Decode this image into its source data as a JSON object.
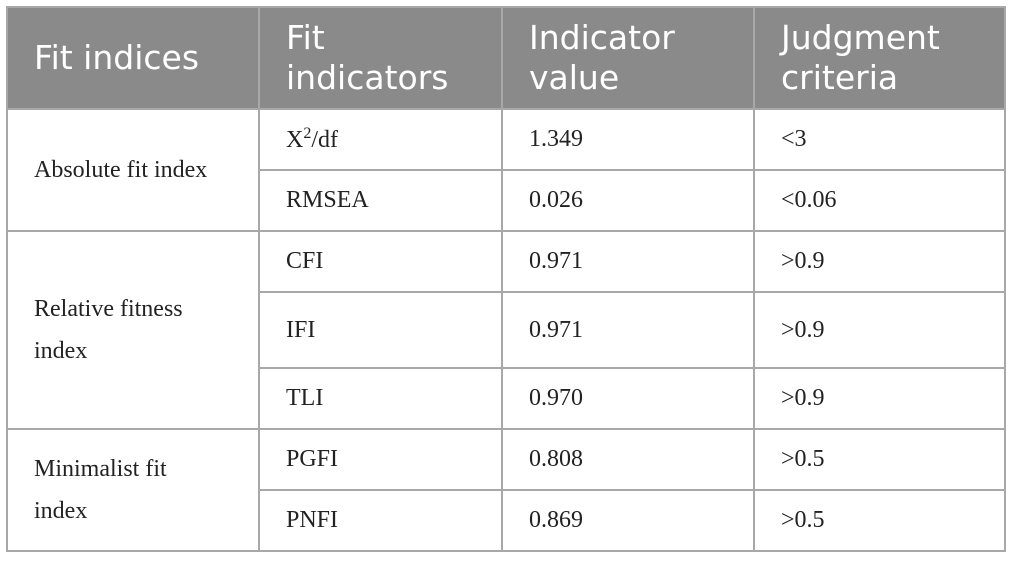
{
  "table": {
    "header": [
      "Fit indices",
      "Fit indicators",
      "Indicator value",
      "Judgment criteria"
    ],
    "groups": [
      {
        "name": "Absolute fit index",
        "rows": [
          [
            {
              "base": "X",
              "sup": "2",
              "rest": "/df"
            },
            "1.349",
            "<3"
          ],
          [
            "RMSEA",
            "0.026",
            "<0.06"
          ]
        ]
      },
      {
        "name": "Relative fitness index",
        "rows": [
          [
            "CFI",
            "0.971",
            ">0.9"
          ],
          [
            "IFI",
            "0.971",
            ">0.9"
          ],
          [
            "TLI",
            "0.970",
            ">0.9"
          ]
        ]
      },
      {
        "name": "Minimalist fit index",
        "rows": [
          [
            "PGFI",
            "0.808",
            ">0.5"
          ],
          [
            "PNFI",
            "0.869",
            ">0.5"
          ]
        ]
      }
    ]
  }
}
